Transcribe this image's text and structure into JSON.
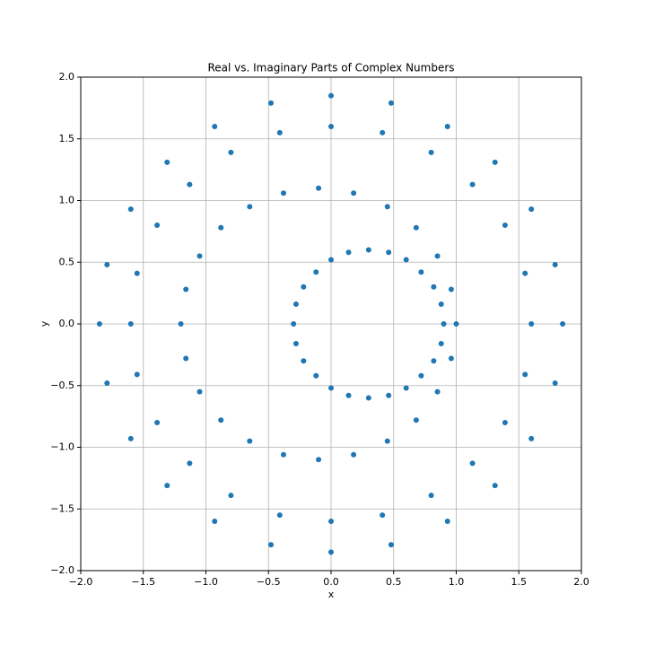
{
  "chart_data": {
    "type": "scatter",
    "title": "Real vs. Imaginary Parts of Complex Numbers",
    "x_label": "x",
    "y_label": "y",
    "color": "#1f77b4",
    "grid": true,
    "xlim": [
      -2,
      2
    ],
    "ylim": [
      -2,
      2
    ],
    "xticks": [
      {
        "value": -2,
        "label": "−2.0"
      },
      {
        "value": -1.5,
        "label": "−1.5"
      },
      {
        "value": -1,
        "label": "−1.0"
      },
      {
        "value": -0.5,
        "label": "−0.5"
      },
      {
        "value": 0,
        "label": "0.0"
      },
      {
        "value": 0.5,
        "label": "0.5"
      },
      {
        "value": 1,
        "label": "1.0"
      },
      {
        "value": 1.5,
        "label": "1.5"
      },
      {
        "value": 2,
        "label": "2.0"
      }
    ],
    "yticks": [
      {
        "value": -2,
        "label": "−2.0"
      },
      {
        "value": -1.5,
        "label": "−1.5"
      },
      {
        "value": -1,
        "label": "−1.0"
      },
      {
        "value": -0.5,
        "label": "−0.5"
      },
      {
        "value": 0,
        "label": "0.0"
      },
      {
        "value": 0.5,
        "label": "0.5"
      },
      {
        "value": 1,
        "label": "1.0"
      },
      {
        "value": 1.5,
        "label": "1.5"
      },
      {
        "value": 2,
        "label": "2.0"
      }
    ],
    "x": [
      1.85,
      1.79,
      1.6,
      1.31,
      0.93,
      0.48,
      0,
      -0.48,
      -0.93,
      -1.31,
      -1.6,
      -1.79,
      -1.85,
      -1.79,
      -1.6,
      -1.31,
      -0.93,
      -0.48,
      0,
      0.48,
      0.93,
      1.31,
      1.6,
      1.79,
      1.6,
      1.55,
      1.39,
      1.13,
      0.8,
      0.41,
      0,
      -0.41,
      -0.8,
      -1.13,
      -1.39,
      -1.55,
      -1.6,
      -1.55,
      -1.39,
      -1.13,
      -0.8,
      -0.41,
      0,
      0.41,
      0.8,
      1.13,
      1.39,
      1.55,
      1.0,
      0.96,
      0.85,
      0.68,
      0.45,
      0.18,
      -0.1,
      -0.38,
      -0.65,
      -0.88,
      -1.05,
      -1.16,
      -1.2,
      -1.16,
      -1.05,
      -0.88,
      -0.65,
      -0.38,
      -0.1,
      0.18,
      0.45,
      0.68,
      0.85,
      0.96,
      0.9,
      0.88,
      0.82,
      0.72,
      0.6,
      0.46,
      0.3,
      0.14,
      0,
      -0.12,
      -0.22,
      -0.28,
      -0.3,
      -0.28,
      -0.22,
      -0.12,
      0,
      0.14,
      0.3,
      0.46,
      0.6,
      0.72,
      0.82,
      0.88
    ],
    "y": [
      0,
      0.48,
      0.93,
      1.31,
      1.6,
      1.79,
      1.85,
      1.79,
      1.6,
      1.31,
      0.93,
      0.48,
      0,
      -0.48,
      -0.93,
      -1.31,
      -1.6,
      -1.79,
      -1.85,
      -1.79,
      -1.6,
      -1.31,
      -0.93,
      -0.48,
      0,
      0.41,
      0.8,
      1.13,
      1.39,
      1.55,
      1.6,
      1.55,
      1.39,
      1.13,
      0.8,
      0.41,
      0,
      -0.41,
      -0.8,
      -1.13,
      -1.39,
      -1.55,
      -1.6,
      -1.55,
      -1.39,
      -1.13,
      -0.8,
      -0.41,
      0,
      0.28,
      0.55,
      0.78,
      0.95,
      1.06,
      1.1,
      1.06,
      0.95,
      0.78,
      0.55,
      0.28,
      0,
      -0.28,
      -0.55,
      -0.78,
      -0.95,
      -1.06,
      -1.1,
      -1.06,
      -0.95,
      -0.78,
      -0.55,
      -0.28,
      0,
      0.16,
      0.3,
      0.42,
      0.52,
      0.58,
      0.6,
      0.58,
      0.52,
      0.42,
      0.3,
      0.16,
      0,
      -0.16,
      -0.3,
      -0.42,
      -0.52,
      -0.58,
      -0.6,
      -0.58,
      -0.52,
      -0.42,
      -0.3,
      -0.16
    ]
  }
}
